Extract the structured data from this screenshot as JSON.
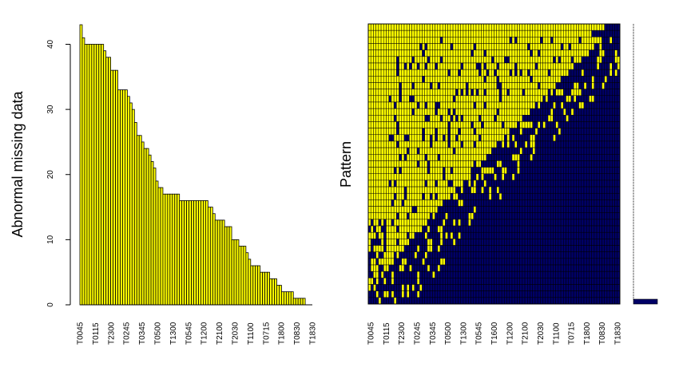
{
  "chart_data": [
    {
      "type": "bar",
      "ylabel": "Abnormal missing data",
      "xlabel": "",
      "ylim": [
        0,
        43
      ],
      "yticks": [
        0,
        10,
        20,
        30,
        40
      ],
      "bar_color": "#FFFF00",
      "shown_x_tick_labels": [
        "T0045",
        "T0115",
        "T2300",
        "T0245",
        "T0345",
        "T0500",
        "T1300",
        "T0545",
        "T1200",
        "T2100",
        "T2030",
        "T1100",
        "T0715",
        "T1800",
        "T0830",
        "T1830"
      ],
      "values": [
        43,
        41,
        40,
        40,
        40,
        40,
        40,
        40,
        40,
        40,
        39,
        38,
        38,
        36,
        36,
        36,
        33,
        33,
        33,
        33,
        32,
        31,
        30,
        28,
        26,
        26,
        25,
        24,
        24,
        23,
        22,
        21,
        19,
        18,
        18,
        17,
        17,
        17,
        17,
        17,
        17,
        17,
        16,
        16,
        16,
        16,
        16,
        16,
        16,
        16,
        16,
        16,
        16,
        16,
        15,
        15,
        14,
        13,
        13,
        13,
        13,
        12,
        12,
        12,
        10,
        10,
        10,
        9,
        9,
        9,
        8,
        7,
        6,
        6,
        6,
        6,
        5,
        5,
        5,
        5,
        4,
        4,
        4,
        3,
        3,
        2,
        2,
        2,
        2,
        2,
        1,
        1,
        1,
        1,
        1,
        0,
        0,
        0
      ]
    },
    {
      "type": "heatmap",
      "ylabel": "Pattern",
      "x_tick_labels": [
        "T0045",
        "T0115",
        "T2300",
        "T0245",
        "T0345",
        "T0500",
        "T1300",
        "T0545",
        "T1600",
        "T1200",
        "T2100",
        "T2030",
        "T1100",
        "T0715",
        "T1800",
        "T0830",
        "T1830"
      ],
      "missing_color": "#FFFF00",
      "observed_color": "#000066",
      "n_variables": 98,
      "n_patterns": 43,
      "pattern_frequency_note": "last pattern (complete cases) most frequent"
    }
  ]
}
